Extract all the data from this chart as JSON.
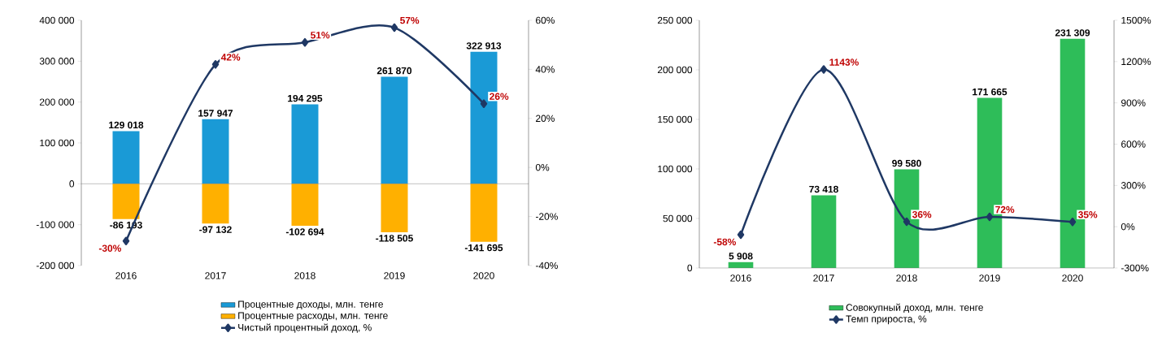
{
  "chart_data": [
    {
      "type": "bar",
      "stacked": true,
      "categories": [
        "2016",
        "2017",
        "2018",
        "2019",
        "2020"
      ],
      "marker": "diamond",
      "legend": "bottom",
      "ylim": [
        -200000,
        400000
      ],
      "yticks": [
        {
          "value": -200000,
          "label": "-200 000"
        },
        {
          "value": -100000,
          "label": "-100 000"
        },
        {
          "value": 0,
          "label": "0"
        },
        {
          "value": 100000,
          "label": "100 000"
        },
        {
          "value": 200000,
          "label": "200 000"
        },
        {
          "value": 300000,
          "label": "300 000"
        },
        {
          "value": 400000,
          "label": "400 000"
        }
      ],
      "y2lim": [
        -40,
        60
      ],
      "y2ticks": [
        {
          "value": -40,
          "label": "-40%"
        },
        {
          "value": -20,
          "label": "-20%"
        },
        {
          "value": 0,
          "label": "0%"
        },
        {
          "value": 20,
          "label": "20%"
        },
        {
          "value": 40,
          "label": "40%"
        },
        {
          "value": 60,
          "label": "60%"
        }
      ],
      "series": [
        {
          "name": "Процентные доходы, млн. тенге",
          "color": "#1a9ad6",
          "values": [
            129018,
            157947,
            194295,
            261870,
            322913
          ],
          "value_labels": [
            "129 018",
            "157 947",
            "194 295",
            "261 870",
            "322 913"
          ]
        },
        {
          "name": "Процентные расходы, млн. тенге",
          "color": "#ffb000",
          "values": [
            -86193,
            -97132,
            -102694,
            -118505,
            -141695
          ],
          "value_labels": [
            "-86 193",
            "-97 132",
            "-102 694",
            "-118 505",
            "-141 695"
          ]
        },
        {
          "name": "Чистый процентный доход, %",
          "type": "line",
          "axis": "y2",
          "color": "#1f3864",
          "values": [
            -30,
            42,
            51,
            57,
            26
          ],
          "value_labels": [
            "-30%",
            "42%",
            "51%",
            "57%",
            "26%"
          ]
        }
      ]
    },
    {
      "type": "bar",
      "categories": [
        "2016",
        "2017",
        "2018",
        "2019",
        "2020"
      ],
      "marker": "diamond",
      "legend": "bottom",
      "ylim": [
        0,
        250000
      ],
      "yticks": [
        {
          "value": 0,
          "label": "0"
        },
        {
          "value": 50000,
          "label": "50 000"
        },
        {
          "value": 100000,
          "label": "100 000"
        },
        {
          "value": 150000,
          "label": "150 000"
        },
        {
          "value": 200000,
          "label": "200 000"
        },
        {
          "value": 250000,
          "label": "250 000"
        }
      ],
      "y2lim": [
        -300,
        1500
      ],
      "y2ticks": [
        {
          "value": -300,
          "label": "-300%"
        },
        {
          "value": 0,
          "label": "0%"
        },
        {
          "value": 300,
          "label": "300%"
        },
        {
          "value": 600,
          "label": "600%"
        },
        {
          "value": 900,
          "label": "900%"
        },
        {
          "value": 1200,
          "label": "1200%"
        },
        {
          "value": 1500,
          "label": "1500%"
        }
      ],
      "series": [
        {
          "name": "Совокупный доход, млн. тенге",
          "color": "#2ebd59",
          "values": [
            5908,
            73418,
            99580,
            171665,
            231309
          ],
          "value_labels": [
            "5 908",
            "73 418",
            "99 580",
            "171 665",
            "231 309"
          ]
        },
        {
          "name": "Темп прироста, %",
          "type": "line",
          "axis": "y2",
          "color": "#1f3864",
          "values": [
            -58,
            1143,
            36,
            72,
            35
          ],
          "value_labels": [
            "-58%",
            "1143%",
            "36%",
            "72%",
            "35%"
          ]
        }
      ]
    }
  ]
}
